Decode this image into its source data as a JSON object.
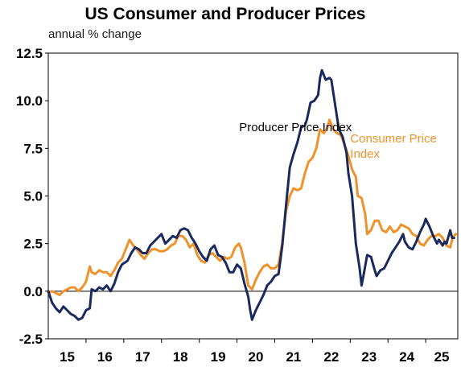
{
  "chart_data": {
    "type": "line",
    "title": "US Consumer and Producer Prices",
    "subtitle": "annual % change",
    "xlabel": "",
    "ylabel": "",
    "x_tick_labels": [
      "15",
      "16",
      "17",
      "18",
      "19",
      "20",
      "21",
      "22",
      "23",
      "24",
      "25"
    ],
    "y_tick_labels": [
      "12.5",
      "10.0",
      "7.5",
      "5.0",
      "2.5",
      "0.0",
      "-2.5"
    ],
    "y_ticks": [
      12.5,
      10.0,
      7.5,
      5.0,
      2.5,
      0.0,
      -2.5
    ],
    "ylim": [
      -2.5,
      12.5
    ],
    "xlim": [
      2015.0,
      2025.85
    ],
    "grid": false,
    "legend": "none (series labelled by annotations on the plot)",
    "series": [
      {
        "name": "Producer Price Index",
        "color": "#1b2a5e",
        "points": [
          [
            2015.0,
            0.0
          ],
          [
            2015.1,
            -0.6
          ],
          [
            2015.2,
            -0.9
          ],
          [
            2015.3,
            -1.1
          ],
          [
            2015.4,
            -0.8
          ],
          [
            2015.5,
            -1.0
          ],
          [
            2015.6,
            -1.2
          ],
          [
            2015.7,
            -1.3
          ],
          [
            2015.8,
            -1.5
          ],
          [
            2015.9,
            -1.4
          ],
          [
            2016.0,
            -1.0
          ],
          [
            2016.1,
            -0.9
          ],
          [
            2016.15,
            0.1
          ],
          [
            2016.25,
            0.0
          ],
          [
            2016.35,
            0.2
          ],
          [
            2016.45,
            0.1
          ],
          [
            2016.55,
            0.3
          ],
          [
            2016.65,
            0.0
          ],
          [
            2016.75,
            0.4
          ],
          [
            2016.85,
            1.0
          ],
          [
            2016.95,
            1.4
          ],
          [
            2017.1,
            1.6
          ],
          [
            2017.2,
            2.0
          ],
          [
            2017.3,
            2.3
          ],
          [
            2017.4,
            2.2
          ],
          [
            2017.5,
            2.0
          ],
          [
            2017.6,
            2.0
          ],
          [
            2017.7,
            2.4
          ],
          [
            2017.8,
            2.6
          ],
          [
            2017.9,
            2.8
          ],
          [
            2018.0,
            3.0
          ],
          [
            2018.1,
            2.5
          ],
          [
            2018.2,
            2.7
          ],
          [
            2018.3,
            2.9
          ],
          [
            2018.4,
            2.8
          ],
          [
            2018.5,
            3.2
          ],
          [
            2018.6,
            3.3
          ],
          [
            2018.7,
            3.2
          ],
          [
            2018.8,
            2.8
          ],
          [
            2018.9,
            2.5
          ],
          [
            2019.0,
            2.1
          ],
          [
            2019.1,
            1.8
          ],
          [
            2019.2,
            1.6
          ],
          [
            2019.3,
            2.2
          ],
          [
            2019.4,
            2.4
          ],
          [
            2019.5,
            1.9
          ],
          [
            2019.6,
            1.8
          ],
          [
            2019.7,
            1.5
          ],
          [
            2019.8,
            1.0
          ],
          [
            2019.9,
            1.0
          ],
          [
            2020.0,
            1.4
          ],
          [
            2020.1,
            1.2
          ],
          [
            2020.2,
            0.4
          ],
          [
            2020.3,
            -0.3
          ],
          [
            2020.35,
            -1.0
          ],
          [
            2020.4,
            -1.5
          ],
          [
            2020.5,
            -1.0
          ],
          [
            2020.6,
            -0.6
          ],
          [
            2020.7,
            -0.2
          ],
          [
            2020.8,
            0.3
          ],
          [
            2020.9,
            0.5
          ],
          [
            2021.0,
            0.8
          ],
          [
            2021.1,
            0.9
          ],
          [
            2021.2,
            2.4
          ],
          [
            2021.3,
            4.5
          ],
          [
            2021.4,
            6.5
          ],
          [
            2021.5,
            7.2
          ],
          [
            2021.6,
            7.8
          ],
          [
            2021.7,
            8.6
          ],
          [
            2021.8,
            8.7
          ],
          [
            2021.85,
            9.0
          ],
          [
            2021.95,
            9.9
          ],
          [
            2022.05,
            10.0
          ],
          [
            2022.15,
            10.3
          ],
          [
            2022.2,
            11.2
          ],
          [
            2022.25,
            11.6
          ],
          [
            2022.35,
            11.1
          ],
          [
            2022.45,
            11.2
          ],
          [
            2022.5,
            11.1
          ],
          [
            2022.6,
            9.8
          ],
          [
            2022.7,
            8.5
          ],
          [
            2022.8,
            8.1
          ],
          [
            2022.9,
            7.3
          ],
          [
            2022.95,
            6.2
          ],
          [
            2023.05,
            5.0
          ],
          [
            2023.15,
            2.5
          ],
          [
            2023.25,
            1.2
          ],
          [
            2023.3,
            0.3
          ],
          [
            2023.35,
            0.8
          ],
          [
            2023.45,
            1.9
          ],
          [
            2023.55,
            1.8
          ],
          [
            2023.65,
            1.1
          ],
          [
            2023.7,
            0.8
          ],
          [
            2023.8,
            1.1
          ],
          [
            2023.9,
            1.2
          ],
          [
            2024.0,
            1.6
          ],
          [
            2024.1,
            2.0
          ],
          [
            2024.2,
            2.3
          ],
          [
            2024.3,
            2.6
          ],
          [
            2024.4,
            3.0
          ],
          [
            2024.45,
            2.6
          ],
          [
            2024.55,
            2.3
          ],
          [
            2024.65,
            2.2
          ],
          [
            2024.75,
            2.6
          ],
          [
            2024.85,
            3.1
          ],
          [
            2024.95,
            3.5
          ],
          [
            2025.0,
            3.8
          ],
          [
            2025.1,
            3.4
          ],
          [
            2025.2,
            2.9
          ],
          [
            2025.3,
            2.5
          ],
          [
            2025.35,
            2.7
          ],
          [
            2025.45,
            2.4
          ],
          [
            2025.5,
            2.6
          ],
          [
            2025.55,
            2.5
          ],
          [
            2025.65,
            3.2
          ],
          [
            2025.7,
            2.8
          ],
          [
            2025.75,
            2.8
          ]
        ]
      },
      {
        "name": "Consumer Price Index",
        "color": "#f0922b",
        "points": [
          [
            2015.0,
            -0.1
          ],
          [
            2015.1,
            0.0
          ],
          [
            2015.2,
            -0.1
          ],
          [
            2015.3,
            -0.2
          ],
          [
            2015.4,
            0.0
          ],
          [
            2015.5,
            0.1
          ],
          [
            2015.6,
            0.2
          ],
          [
            2015.7,
            0.2
          ],
          [
            2015.8,
            0.0
          ],
          [
            2015.9,
            0.2
          ],
          [
            2016.0,
            0.5
          ],
          [
            2016.1,
            1.3
          ],
          [
            2016.15,
            1.0
          ],
          [
            2016.25,
            0.9
          ],
          [
            2016.35,
            1.1
          ],
          [
            2016.45,
            1.0
          ],
          [
            2016.55,
            1.0
          ],
          [
            2016.65,
            0.8
          ],
          [
            2016.75,
            1.1
          ],
          [
            2016.85,
            1.5
          ],
          [
            2016.95,
            1.7
          ],
          [
            2017.05,
            2.2
          ],
          [
            2017.15,
            2.7
          ],
          [
            2017.25,
            2.4
          ],
          [
            2017.35,
            2.2
          ],
          [
            2017.45,
            1.9
          ],
          [
            2017.55,
            1.7
          ],
          [
            2017.65,
            2.0
          ],
          [
            2017.75,
            2.2
          ],
          [
            2017.85,
            2.2
          ],
          [
            2017.95,
            2.1
          ],
          [
            2018.05,
            2.1
          ],
          [
            2018.15,
            2.2
          ],
          [
            2018.25,
            2.4
          ],
          [
            2018.35,
            2.5
          ],
          [
            2018.45,
            2.9
          ],
          [
            2018.55,
            2.9
          ],
          [
            2018.65,
            2.7
          ],
          [
            2018.75,
            2.3
          ],
          [
            2018.85,
            2.5
          ],
          [
            2018.95,
            1.9
          ],
          [
            2019.05,
            1.6
          ],
          [
            2019.15,
            1.5
          ],
          [
            2019.25,
            1.9
          ],
          [
            2019.35,
            2.0
          ],
          [
            2019.45,
            1.8
          ],
          [
            2019.55,
            1.6
          ],
          [
            2019.65,
            1.8
          ],
          [
            2019.75,
            1.7
          ],
          [
            2019.85,
            1.8
          ],
          [
            2019.95,
            2.3
          ],
          [
            2020.05,
            2.5
          ],
          [
            2020.1,
            2.3
          ],
          [
            2020.2,
            1.5
          ],
          [
            2020.3,
            0.3
          ],
          [
            2020.4,
            0.1
          ],
          [
            2020.5,
            0.6
          ],
          [
            2020.6,
            1.0
          ],
          [
            2020.7,
            1.3
          ],
          [
            2020.8,
            1.4
          ],
          [
            2020.9,
            1.2
          ],
          [
            2021.0,
            1.2
          ],
          [
            2021.1,
            1.4
          ],
          [
            2021.2,
            2.6
          ],
          [
            2021.3,
            4.2
          ],
          [
            2021.4,
            5.0
          ],
          [
            2021.5,
            5.4
          ],
          [
            2021.6,
            5.3
          ],
          [
            2021.7,
            5.4
          ],
          [
            2021.8,
            6.2
          ],
          [
            2021.9,
            6.8
          ],
          [
            2022.0,
            7.0
          ],
          [
            2022.1,
            7.5
          ],
          [
            2022.2,
            8.5
          ],
          [
            2022.3,
            8.3
          ],
          [
            2022.4,
            8.6
          ],
          [
            2022.45,
            9.0
          ],
          [
            2022.55,
            8.5
          ],
          [
            2022.65,
            8.3
          ],
          [
            2022.75,
            8.2
          ],
          [
            2022.85,
            7.7
          ],
          [
            2022.95,
            7.1
          ],
          [
            2023.05,
            6.4
          ],
          [
            2023.15,
            6.0
          ],
          [
            2023.2,
            5.0
          ],
          [
            2023.3,
            4.9
          ],
          [
            2023.4,
            4.0
          ],
          [
            2023.45,
            3.0
          ],
          [
            2023.55,
            3.2
          ],
          [
            2023.65,
            3.7
          ],
          [
            2023.75,
            3.7
          ],
          [
            2023.85,
            3.2
          ],
          [
            2023.95,
            3.1
          ],
          [
            2024.05,
            3.4
          ],
          [
            2024.15,
            3.1
          ],
          [
            2024.25,
            3.2
          ],
          [
            2024.35,
            3.5
          ],
          [
            2024.45,
            3.4
          ],
          [
            2024.55,
            3.3
          ],
          [
            2024.65,
            3.0
          ],
          [
            2024.75,
            2.9
          ],
          [
            2024.85,
            2.5
          ],
          [
            2024.95,
            2.4
          ],
          [
            2025.05,
            2.7
          ],
          [
            2025.15,
            2.9
          ],
          [
            2025.25,
            2.9
          ],
          [
            2025.35,
            3.0
          ],
          [
            2025.45,
            2.8
          ],
          [
            2025.55,
            2.4
          ],
          [
            2025.65,
            2.3
          ],
          [
            2025.7,
            2.7
          ],
          [
            2025.75,
            2.9
          ],
          [
            2025.8,
            3.0
          ]
        ]
      }
    ],
    "annotations": [
      {
        "text": "Producer Price Index",
        "color": "#000000",
        "x": 2021.55,
        "y": 8.4,
        "anchor": "middle"
      },
      {
        "text": "Consumer Price",
        "color": "#f0922b",
        "x": 2023.0,
        "y": 7.8,
        "anchor": "start"
      },
      {
        "text": "Index",
        "color": "#f0922b",
        "x": 2023.0,
        "y": 7.0,
        "anchor": "start"
      }
    ]
  }
}
